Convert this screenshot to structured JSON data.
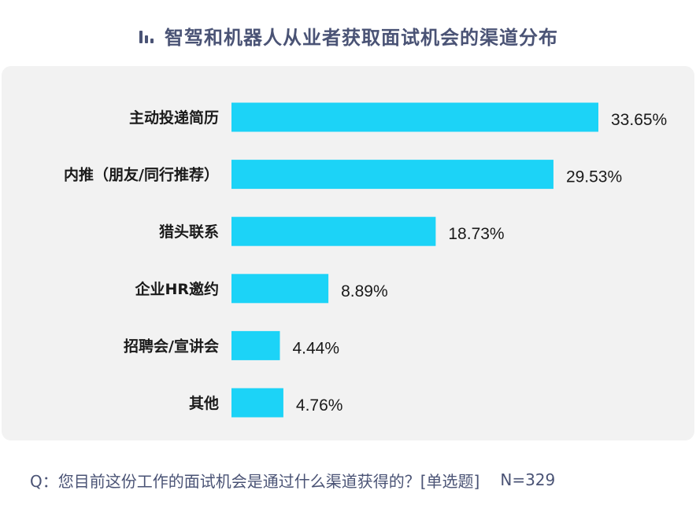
{
  "title": "智驾和机器人从业者获取面试机会的渠道分布",
  "title_icon": "bar-chart-icon",
  "footer": {
    "question": "Q：您目前这份工作的面试机会是通过什么渠道获得的？[单选题]",
    "sample": "N=329"
  },
  "colors": {
    "bar": "#1cd3f7",
    "title": "#4a5375",
    "panel": "#f2f2f2",
    "label": "#1a1a1a"
  },
  "chart_data": {
    "type": "bar",
    "orientation": "horizontal",
    "categories": [
      "主动投递简历",
      "内推（朋友/同行推荐）",
      "猎头联系",
      "企业HR邀约",
      "招聘会/宣讲会",
      "其他"
    ],
    "values": [
      33.65,
      29.53,
      18.73,
      8.89,
      4.44,
      4.76
    ],
    "value_labels": [
      "33.65%",
      "29.53%",
      "18.73%",
      "8.89%",
      "4.44%",
      "4.76%"
    ],
    "unit": "%",
    "xlim": [
      0,
      33.65
    ],
    "grid": false,
    "legend": "none"
  }
}
